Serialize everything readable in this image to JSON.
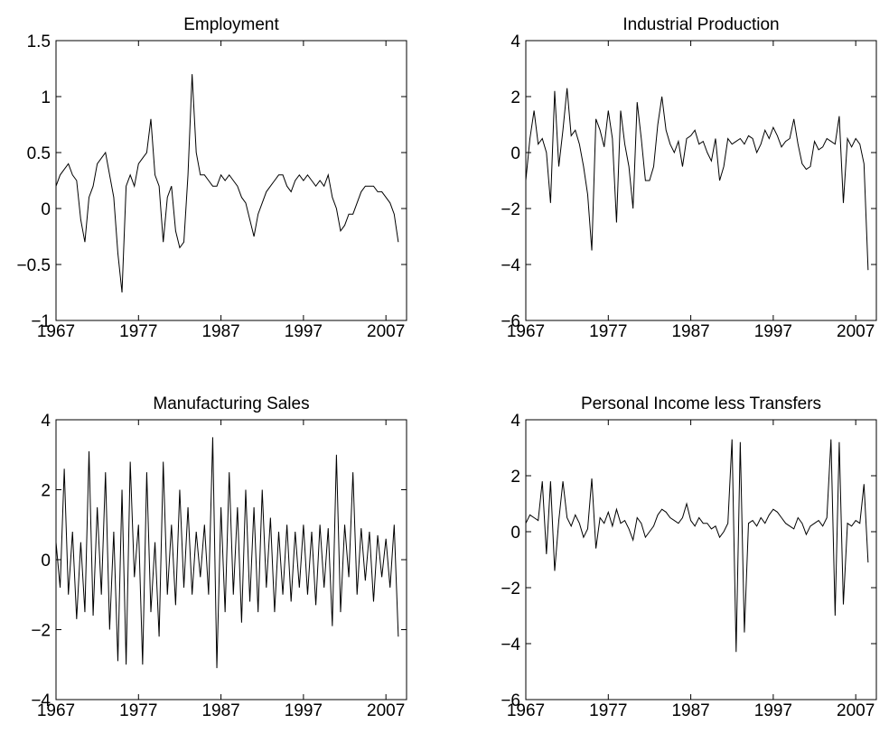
{
  "chart_data": [
    {
      "type": "line",
      "title": "Employment",
      "color": "#000000",
      "x": [
        1967,
        1967.5,
        1968,
        1968.5,
        1969,
        1969.5,
        1970,
        1970.5,
        1971,
        1971.5,
        1972,
        1972.5,
        1973,
        1973.5,
        1974,
        1974.5,
        1975,
        1975.5,
        1976,
        1976.5,
        1977,
        1977.5,
        1978,
        1978.5,
        1979,
        1979.5,
        1980,
        1980.5,
        1981,
        1981.5,
        1982,
        1982.5,
        1983,
        1983.5,
        1984,
        1984.5,
        1985,
        1985.5,
        1986,
        1986.5,
        1987,
        1987.5,
        1988,
        1988.5,
        1989,
        1989.5,
        1990,
        1990.5,
        1991,
        1991.5,
        1992,
        1992.5,
        1993,
        1993.5,
        1994,
        1994.5,
        1995,
        1995.5,
        1996,
        1996.5,
        1997,
        1997.5,
        1998,
        1998.5,
        1999,
        1999.5,
        2000,
        2000.5,
        2001,
        2001.5,
        2002,
        2002.5,
        2003,
        2003.5,
        2004,
        2004.5,
        2005,
        2005.5,
        2006,
        2006.5,
        2007,
        2007.5,
        2008,
        2008.5
      ],
      "values": [
        0.2,
        0.3,
        0.35,
        0.4,
        0.3,
        0.25,
        -0.1,
        -0.3,
        0.1,
        0.2,
        0.4,
        0.45,
        0.5,
        0.3,
        0.1,
        -0.4,
        -0.75,
        0.2,
        0.3,
        0.2,
        0.4,
        0.45,
        0.5,
        0.8,
        0.3,
        0.2,
        -0.3,
        0.1,
        0.2,
        -0.2,
        -0.35,
        -0.3,
        0.3,
        1.2,
        0.5,
        0.3,
        0.3,
        0.25,
        0.2,
        0.2,
        0.3,
        0.25,
        0.3,
        0.25,
        0.2,
        0.1,
        0.05,
        -0.1,
        -0.25,
        -0.05,
        0.05,
        0.15,
        0.2,
        0.25,
        0.3,
        0.3,
        0.2,
        0.15,
        0.25,
        0.3,
        0.25,
        0.3,
        0.25,
        0.2,
        0.25,
        0.2,
        0.3,
        0.1,
        0,
        -0.2,
        -0.15,
        -0.05,
        -0.05,
        0.05,
        0.15,
        0.2,
        0.2,
        0.2,
        0.15,
        0.15,
        0.1,
        0.05,
        -0.05,
        -0.3
      ],
      "xlim": [
        1967,
        2009.5
      ],
      "xticks": [
        1967,
        1977,
        1987,
        1997,
        2007
      ],
      "ylim": [
        -1,
        1.5
      ],
      "yticks": [
        {
          "value": -1,
          "label": "−1"
        },
        {
          "value": -0.5,
          "label": "−0.5"
        },
        0,
        0.5,
        1,
        1.5
      ]
    },
    {
      "type": "line",
      "title": "Industrial Production",
      "color": "#000000",
      "x": [
        1967,
        1967.5,
        1968,
        1968.5,
        1969,
        1969.5,
        1970,
        1970.5,
        1971,
        1971.5,
        1972,
        1972.5,
        1973,
        1973.5,
        1974,
        1974.5,
        1975,
        1975.5,
        1976,
        1976.5,
        1977,
        1977.5,
        1978,
        1978.5,
        1979,
        1979.5,
        1980,
        1980.5,
        1981,
        1981.5,
        1982,
        1982.5,
        1983,
        1983.5,
        1984,
        1984.5,
        1985,
        1985.5,
        1986,
        1986.5,
        1987,
        1987.5,
        1988,
        1988.5,
        1989,
        1989.5,
        1990,
        1990.5,
        1991,
        1991.5,
        1992,
        1992.5,
        1993,
        1993.5,
        1994,
        1994.5,
        1995,
        1995.5,
        1996,
        1996.5,
        1997,
        1997.5,
        1998,
        1998.5,
        1999,
        1999.5,
        2000,
        2000.5,
        2001,
        2001.5,
        2002,
        2002.5,
        2003,
        2003.5,
        2004,
        2004.5,
        2005,
        2005.5,
        2006,
        2006.5,
        2007,
        2007.5,
        2008,
        2008.5
      ],
      "values": [
        -1,
        0.5,
        1.5,
        0.3,
        0.5,
        0,
        -1.8,
        2.2,
        -0.5,
        0.8,
        2.3,
        0.6,
        0.8,
        0.3,
        -0.5,
        -1.5,
        -3.5,
        1.2,
        0.8,
        0.2,
        1.5,
        0.5,
        -2.5,
        1.5,
        0.3,
        -0.5,
        -2,
        1.8,
        0.5,
        -1,
        -1,
        -0.5,
        1,
        2,
        0.8,
        0.3,
        0,
        0.4,
        -0.5,
        0.5,
        0.6,
        0.8,
        0.3,
        0.4,
        0,
        -0.3,
        0.5,
        -1,
        -0.5,
        0.5,
        0.3,
        0.4,
        0.5,
        0.3,
        0.6,
        0.5,
        0,
        0.3,
        0.8,
        0.5,
        0.9,
        0.6,
        0.2,
        0.4,
        0.5,
        1.2,
        0.3,
        -0.4,
        -0.6,
        -0.5,
        0.4,
        0.1,
        0.2,
        0.5,
        0.4,
        0.3,
        1.3,
        -1.8,
        0.5,
        0.2,
        0.5,
        0.3,
        -0.4,
        -4.2
      ],
      "xlim": [
        1967,
        2009.5
      ],
      "xticks": [
        1967,
        1977,
        1987,
        1997,
        2007
      ],
      "ylim": [
        -6,
        4
      ],
      "yticks": [
        {
          "value": -6,
          "label": "−6"
        },
        {
          "value": -4,
          "label": "−4"
        },
        {
          "value": -2,
          "label": "−2"
        },
        0,
        2,
        4
      ]
    },
    {
      "type": "line",
      "title": "Manufacturing Sales",
      "color": "#000000",
      "x": [
        1967,
        1967.5,
        1968,
        1968.5,
        1969,
        1969.5,
        1970,
        1970.5,
        1971,
        1971.5,
        1972,
        1972.5,
        1973,
        1973.5,
        1974,
        1974.5,
        1975,
        1975.5,
        1976,
        1976.5,
        1977,
        1977.5,
        1978,
        1978.5,
        1979,
        1979.5,
        1980,
        1980.5,
        1981,
        1981.5,
        1982,
        1982.5,
        1983,
        1983.5,
        1984,
        1984.5,
        1985,
        1985.5,
        1986,
        1986.5,
        1987,
        1987.5,
        1988,
        1988.5,
        1989,
        1989.5,
        1990,
        1990.5,
        1991,
        1991.5,
        1992,
        1992.5,
        1993,
        1993.5,
        1994,
        1994.5,
        1995,
        1995.5,
        1996,
        1996.5,
        1997,
        1997.5,
        1998,
        1998.5,
        1999,
        1999.5,
        2000,
        2000.5,
        2001,
        2001.5,
        2002,
        2002.5,
        2003,
        2003.5,
        2004,
        2004.5,
        2005,
        2005.5,
        2006,
        2006.5,
        2007,
        2007.5,
        2008,
        2008.5
      ],
      "values": [
        0.5,
        -0.8,
        2.6,
        -1,
        0.8,
        -1.7,
        0.5,
        -1.5,
        3.1,
        -1.6,
        1.5,
        -1,
        2.5,
        -2,
        0.8,
        -2.9,
        2,
        -3,
        2.8,
        -0.5,
        1,
        -3,
        2.5,
        -1.5,
        0.5,
        -2.2,
        2.8,
        -1,
        1,
        -1.3,
        2,
        -0.8,
        1.5,
        -1,
        0.8,
        -0.5,
        1,
        -1,
        3.5,
        -3.1,
        1.5,
        -1.5,
        2.5,
        -1,
        1.5,
        -1.8,
        2,
        -1.2,
        1.5,
        -1.5,
        2,
        -0.8,
        1.2,
        -1.5,
        0.8,
        -1,
        1,
        -1.2,
        0.8,
        -0.8,
        1,
        -1,
        0.8,
        -1.3,
        1,
        -0.8,
        0.9,
        -1.9,
        3,
        -1.5,
        1,
        -0.5,
        2.5,
        -1,
        0.9,
        -0.6,
        0.8,
        -1.2,
        0.7,
        -0.5,
        0.6,
        -0.8,
        1,
        -2.2
      ],
      "xlim": [
        1967,
        2009.5
      ],
      "xticks": [
        1967,
        1977,
        1987,
        1997,
        2007
      ],
      "ylim": [
        -4,
        4
      ],
      "yticks": [
        {
          "value": -4,
          "label": "−4"
        },
        {
          "value": -2,
          "label": "−2"
        },
        0,
        2,
        4
      ]
    },
    {
      "type": "line",
      "title": "Personal Income less Transfers",
      "color": "#000000",
      "x": [
        1967,
        1967.5,
        1968,
        1968.5,
        1969,
        1969.5,
        1970,
        1970.5,
        1971,
        1971.5,
        1972,
        1972.5,
        1973,
        1973.5,
        1974,
        1974.5,
        1975,
        1975.5,
        1976,
        1976.5,
        1977,
        1977.5,
        1978,
        1978.5,
        1979,
        1979.5,
        1980,
        1980.5,
        1981,
        1981.5,
        1982,
        1982.5,
        1983,
        1983.5,
        1984,
        1984.5,
        1985,
        1985.5,
        1986,
        1986.5,
        1987,
        1987.5,
        1988,
        1988.5,
        1989,
        1989.5,
        1990,
        1990.5,
        1991,
        1991.5,
        1992,
        1992.5,
        1993,
        1993.5,
        1994,
        1994.5,
        1995,
        1995.5,
        1996,
        1996.5,
        1997,
        1997.5,
        1998,
        1998.5,
        1999,
        1999.5,
        2000,
        2000.5,
        2001,
        2001.5,
        2002,
        2002.5,
        2003,
        2003.5,
        2004,
        2004.5,
        2005,
        2005.5,
        2006,
        2006.5,
        2007,
        2007.5,
        2008,
        2008.5
      ],
      "values": [
        0.3,
        0.6,
        0.5,
        0.4,
        1.8,
        -0.8,
        1.8,
        -1.4,
        0.4,
        1.8,
        0.5,
        0.2,
        0.6,
        0.3,
        -0.2,
        0.1,
        1.9,
        -0.6,
        0.5,
        0.3,
        0.7,
        0.2,
        0.8,
        0.3,
        0.4,
        0.1,
        -0.3,
        0.5,
        0.3,
        -0.2,
        0,
        0.2,
        0.6,
        0.8,
        0.7,
        0.5,
        0.4,
        0.3,
        0.5,
        1,
        0.4,
        0.2,
        0.5,
        0.3,
        0.3,
        0.1,
        0.2,
        -0.2,
        0,
        0.3,
        3.3,
        -4.3,
        3.2,
        -3.6,
        0.3,
        0.4,
        0.2,
        0.5,
        0.3,
        0.6,
        0.8,
        0.7,
        0.5,
        0.3,
        0.2,
        0.1,
        0.5,
        0.3,
        -0.1,
        0.2,
        0.3,
        0.4,
        0.2,
        0.5,
        3.3,
        -3,
        3.2,
        -2.6,
        0.3,
        0.2,
        0.4,
        0.3,
        1.7,
        -1.1
      ],
      "xlim": [
        1967,
        2009.5
      ],
      "xticks": [
        1967,
        1977,
        1987,
        1997,
        2007
      ],
      "ylim": [
        -6,
        4
      ],
      "yticks": [
        {
          "value": -6,
          "label": "−6"
        },
        {
          "value": -4,
          "label": "−4"
        },
        {
          "value": -2,
          "label": "−2"
        },
        0,
        2,
        4
      ]
    }
  ]
}
